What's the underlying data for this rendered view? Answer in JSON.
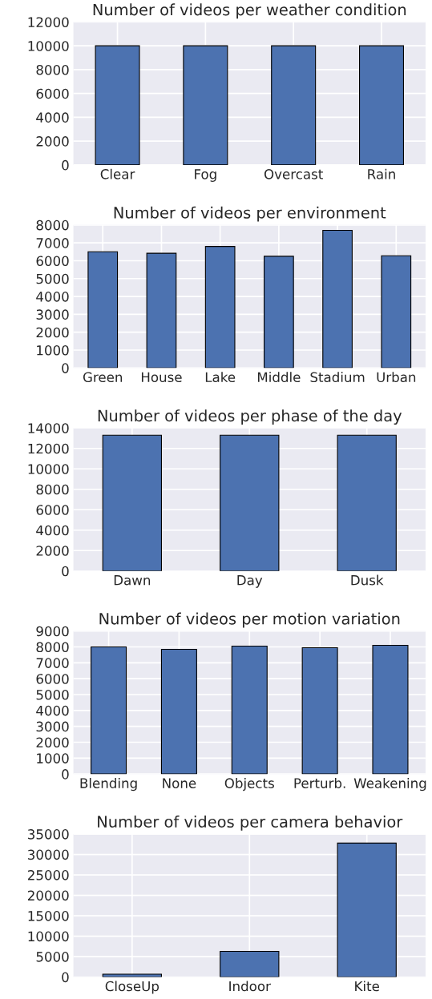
{
  "chart_data": [
    {
      "type": "bar",
      "title": "Number of videos per weather condition",
      "categories": [
        "Clear",
        "Fog",
        "Overcast",
        "Rain"
      ],
      "values": [
        10000,
        10000,
        10000,
        10000
      ],
      "color": "#4c72b0",
      "ylim": [
        0,
        12000
      ],
      "yticks": [
        0,
        2000,
        4000,
        6000,
        8000,
        10000,
        12000
      ],
      "grid": true
    },
    {
      "type": "bar",
      "title": "Number of videos per environment",
      "categories": [
        "Green",
        "House",
        "Lake",
        "Middle",
        "Stadium",
        "Urban"
      ],
      "values": [
        6500,
        6420,
        6800,
        6250,
        7700,
        6280
      ],
      "color": "#4c72b0",
      "ylim": [
        0,
        8000
      ],
      "yticks": [
        0,
        1000,
        2000,
        3000,
        4000,
        5000,
        6000,
        7000,
        8000
      ],
      "grid": true
    },
    {
      "type": "bar",
      "title": "Number of videos per phase of the day",
      "categories": [
        "Dawn",
        "Day",
        "Dusk"
      ],
      "values": [
        13300,
        13300,
        13300
      ],
      "color": "#4c72b0",
      "ylim": [
        0,
        14000
      ],
      "yticks": [
        0,
        2000,
        4000,
        6000,
        8000,
        10000,
        12000,
        14000
      ],
      "grid": true
    },
    {
      "type": "bar",
      "title": "Number of videos per motion variation",
      "categories": [
        "Blending",
        "None",
        "Objects",
        "Perturb.",
        "Weakening"
      ],
      "values": [
        8000,
        7850,
        8050,
        7950,
        8100
      ],
      "color": "#4c72b0",
      "ylim": [
        0,
        9000
      ],
      "yticks": [
        0,
        1000,
        2000,
        3000,
        4000,
        5000,
        6000,
        7000,
        8000,
        9000
      ],
      "grid": true
    },
    {
      "type": "bar",
      "title": "Number of videos per camera behavior",
      "categories": [
        "CloseUp",
        "Indoor",
        "Kite"
      ],
      "values": [
        700,
        6300,
        32800
      ],
      "color": "#4c72b0",
      "ylim": [
        0,
        35000
      ],
      "yticks": [
        0,
        5000,
        10000,
        15000,
        20000,
        25000,
        30000,
        35000
      ],
      "grid": true
    }
  ]
}
